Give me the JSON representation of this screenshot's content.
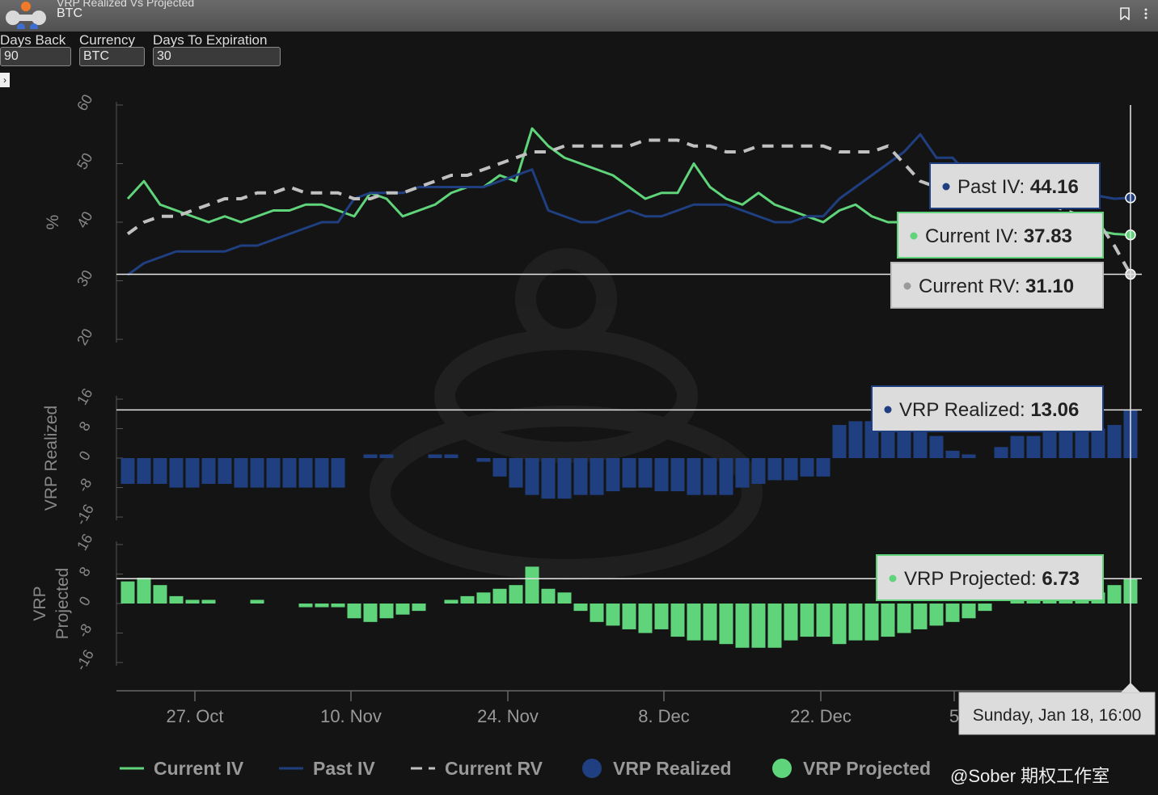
{
  "window": {
    "title": "VRP Realized Vs Projected",
    "subtitle": "BTC"
  },
  "controls": [
    {
      "label": "Days Back",
      "value": "90"
    },
    {
      "label": "Currency",
      "value": "BTC"
    },
    {
      "label": "Days To Expiration",
      "value": "30"
    }
  ],
  "icons": {
    "bookmark": "bookmark-icon",
    "menu": "more-vertical-icon",
    "expand": "chevron-right-icon"
  },
  "colors": {
    "current_iv": "#5fd47a",
    "past_iv": "#1f3f80",
    "current_rv": "#c0c0c0",
    "vrp_realized": "#1f3f80",
    "vrp_projected": "#5fd47a"
  },
  "chart_data": {
    "type": "line",
    "x_ticks": [
      "27. Oct",
      "10. Nov",
      "24. Nov",
      "8. Dec",
      "22. Dec",
      "5"
    ],
    "panels": [
      {
        "name": "iv",
        "ylabel": "%",
        "yticks": [
          "20",
          "30",
          "40",
          "50",
          "60"
        ],
        "ylim": [
          20,
          60
        ],
        "series": [
          {
            "name": "Current IV",
            "type": "line",
            "values": [
              44,
              47,
              43,
              42,
              41,
              40,
              41,
              40,
              41,
              42,
              42,
              43,
              43,
              42,
              41,
              45,
              44,
              41,
              42,
              43,
              45,
              46,
              46,
              48,
              47,
              56,
              53,
              51,
              50,
              49,
              48,
              46,
              44,
              45,
              45,
              50,
              46,
              44,
              43,
              45,
              43,
              42,
              41,
              40,
              42,
              43,
              41,
              40,
              40,
              41,
              41,
              40,
              40,
              40,
              39,
              38,
              39,
              38,
              38,
              38,
              38.5,
              38,
              37.83
            ]
          },
          {
            "name": "Past IV",
            "type": "line",
            "values": [
              31,
              33,
              34,
              35,
              35,
              35,
              35,
              36,
              36,
              37,
              38,
              39,
              40,
              40,
              44,
              45,
              45,
              45,
              46,
              46,
              46,
              46,
              46,
              47,
              48,
              49,
              42,
              41,
              40,
              40,
              41,
              42,
              41,
              41,
              42,
              43,
              43,
              43,
              42,
              41,
              40,
              40,
              41,
              41,
              44,
              46,
              48,
              50,
              52,
              55,
              51,
              51,
              48,
              47,
              46,
              45,
              46,
              45,
              44,
              44,
              44.5,
              44,
              44.16
            ]
          },
          {
            "name": "Current RV",
            "type": "dashed",
            "values": [
              38,
              40,
              41,
              41,
              42,
              43,
              44,
              44,
              45,
              45,
              46,
              45,
              45,
              45,
              44,
              44,
              45,
              45,
              46,
              47,
              48,
              48,
              49,
              50,
              51,
              52,
              52,
              53,
              53,
              53,
              53,
              53,
              54,
              54,
              54,
              53,
              53,
              52,
              52,
              53,
              53,
              53,
              53,
              53,
              52,
              52,
              52,
              53,
              50,
              47,
              46,
              46,
              46,
              45,
              44,
              44,
              44,
              43,
              42,
              41,
              40,
              36,
              31.1
            ]
          }
        ]
      },
      {
        "name": "vrp_realized",
        "ylabel": "VRP Realized",
        "yticks": [
          "-16",
          "-8",
          "0",
          "8",
          "16"
        ],
        "ylim": [
          -16,
          16
        ],
        "series": [
          {
            "name": "VRP Realized",
            "type": "column",
            "values": [
              -7,
              -7,
              -7,
              -8,
              -8,
              -7,
              -7,
              -8,
              -8,
              -8,
              -8,
              -8,
              -8,
              -8,
              0,
              1,
              1,
              0,
              0,
              1,
              1,
              0,
              -1,
              -5,
              -8,
              -10,
              -11,
              -11,
              -10,
              -10,
              -9,
              -8,
              -8,
              -9,
              -9,
              -10,
              -10,
              -10,
              -8,
              -7,
              -6,
              -6,
              -5,
              -5,
              9,
              10,
              10,
              9,
              8,
              7,
              6,
              2,
              1,
              0,
              3,
              6,
              6,
              7,
              7,
              7,
              8,
              9,
              13.06
            ]
          }
        ]
      },
      {
        "name": "vrp_projected",
        "ylabel": "VRP Projected",
        "yticks": [
          "-16",
          "-8",
          "0",
          "8",
          "16"
        ],
        "ylim": [
          -16,
          16
        ],
        "series": [
          {
            "name": "VRP Projected",
            "type": "column",
            "values": [
              6,
              7,
              5,
              2,
              1,
              1,
              0,
              0,
              1,
              0,
              0,
              -1,
              -1,
              -1,
              -4,
              -5,
              -4,
              -3,
              -2,
              0,
              1,
              2,
              3,
              4,
              5,
              10,
              4,
              3,
              -2,
              -5,
              -6,
              -7,
              -8,
              -7,
              -9,
              -10,
              -10,
              -11,
              -12,
              -12,
              -12,
              -10,
              -9,
              -9,
              -11,
              -10,
              -10,
              -9,
              -8,
              -7,
              -6,
              -5,
              -4,
              -2,
              0,
              2,
              2,
              3,
              3,
              3,
              3,
              5,
              6.73
            ]
          }
        ]
      }
    ],
    "legend": {
      "placement": "bottom",
      "items": [
        "Current IV",
        "Past IV",
        "Current RV",
        "VRP Realized",
        "VRP Projected"
      ]
    },
    "crosshair": {
      "date": "Sunday, Jan 18, 16:00"
    },
    "tooltips": [
      {
        "label": "Past IV",
        "value": "44.16"
      },
      {
        "label": "Current IV",
        "value": "37.83"
      },
      {
        "label": "Current RV",
        "value": "31.10"
      },
      {
        "label": "VRP Realized",
        "value": "13.06"
      },
      {
        "label": "VRP Projected",
        "value": "6.73"
      }
    ]
  },
  "footer": {
    "watermark": "@Sober 期权工作室"
  }
}
